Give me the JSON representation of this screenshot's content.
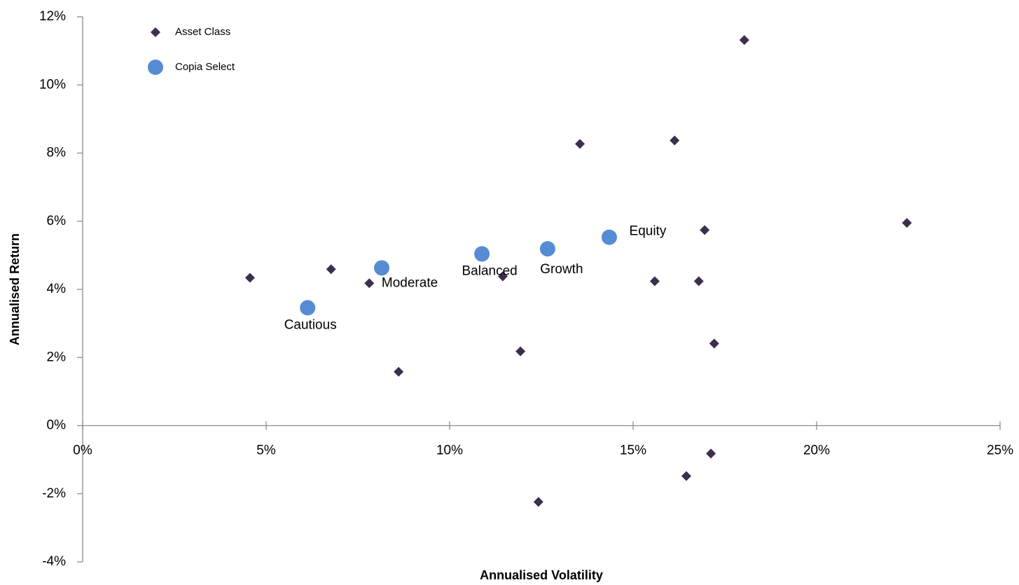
{
  "chart_data": {
    "type": "scatter",
    "x_label": "Annualised Volatility",
    "y_label": "Annualised Return",
    "xlim": [
      0,
      25
    ],
    "ylim": [
      -4,
      12
    ],
    "xticks": [
      {
        "value": 0,
        "label": "0%"
      },
      {
        "value": 5,
        "label": "5%"
      },
      {
        "value": 10,
        "label": "10%"
      },
      {
        "value": 15,
        "label": "15%"
      },
      {
        "value": 20,
        "label": "20%"
      },
      {
        "value": 25,
        "label": "25%"
      }
    ],
    "yticks": [
      {
        "value": -4,
        "label": "-4%"
      },
      {
        "value": -2,
        "label": "-2%"
      },
      {
        "value": 0,
        "label": "0%"
      },
      {
        "value": 2,
        "label": "2%"
      },
      {
        "value": 4,
        "label": "4%"
      },
      {
        "value": 6,
        "label": "6%"
      },
      {
        "value": 8,
        "label": "8%"
      },
      {
        "value": 10,
        "label": "10%"
      },
      {
        "value": 12,
        "label": "12%"
      }
    ],
    "grid": false,
    "legend": "upper-left",
    "series": [
      {
        "name": "Asset Class",
        "color": "#3d2e4f",
        "marker": "diamond",
        "x": [
          4.56,
          6.77,
          7.81,
          8.61,
          11.45,
          11.93,
          12.42,
          13.55,
          15.59,
          16.13,
          16.45,
          16.79,
          16.95,
          17.12,
          17.21,
          18.03,
          22.46
        ],
        "values": [
          4.34,
          4.59,
          4.18,
          1.58,
          4.38,
          2.18,
          -2.24,
          8.27,
          4.24,
          8.37,
          -1.48,
          4.24,
          5.74,
          -0.82,
          2.41,
          11.32,
          5.95
        ]
      },
      {
        "name": "Copia Select",
        "color": "#568cd4",
        "marker": "circle",
        "x": [
          6.13,
          8.15,
          10.88,
          12.67,
          14.35
        ],
        "values": [
          3.46,
          4.63,
          5.04,
          5.19,
          5.53
        ],
        "labels": [
          "Cautious",
          "Moderate",
          "Balanced",
          "Growth",
          "Equity"
        ]
      }
    ]
  }
}
